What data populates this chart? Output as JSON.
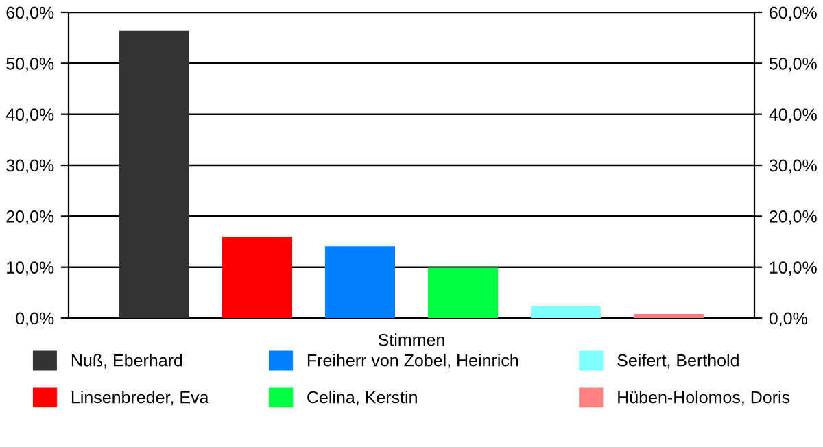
{
  "chart_data": {
    "type": "bar",
    "categories": [
      "Stimmen"
    ],
    "series": [
      {
        "name": "Nuß, Eberhard",
        "color": "#333333",
        "values": [
          56.4
        ]
      },
      {
        "name": "Linsenbreder, Eva",
        "color": "#ff0000",
        "values": [
          16.0
        ]
      },
      {
        "name": "Freiherr von Zobel, Heinrich",
        "color": "#0080ff",
        "values": [
          14.1
        ]
      },
      {
        "name": "Celina, Kerstin",
        "color": "#00ff40",
        "values": [
          9.9
        ]
      },
      {
        "name": "Seifert, Berthold",
        "color": "#80ffff",
        "values": [
          2.3
        ]
      },
      {
        "name": "Hüben-Holomos, Doris",
        "color": "#ff8080",
        "values": [
          0.8
        ]
      }
    ],
    "ylim": [
      0,
      60
    ],
    "yticks": [
      {
        "value": 0,
        "label": "0,0%"
      },
      {
        "value": 10,
        "label": "10,0%"
      },
      {
        "value": 20,
        "label": "20,0%"
      },
      {
        "value": 30,
        "label": "30,0%"
      },
      {
        "value": 40,
        "label": "40,0%"
      },
      {
        "value": 50,
        "label": "50,0%"
      },
      {
        "value": 60,
        "label": "60,0%"
      }
    ],
    "grid": "y",
    "legend": "bottom"
  }
}
